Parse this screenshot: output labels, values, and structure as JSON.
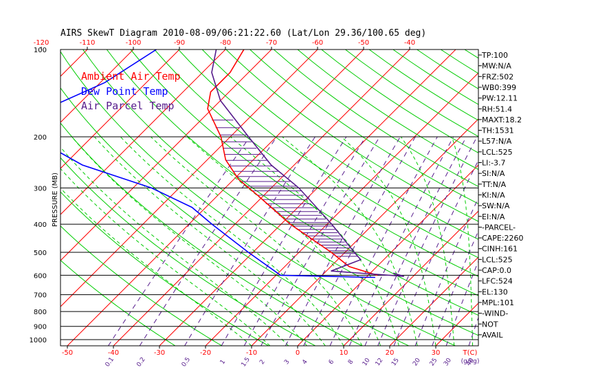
{
  "chart_data": {
    "type": "skewt",
    "title": "AIRS SkewT Diagram 2010-08-09/06:21:22.60 (Lat/Lon 29.36/100.65 deg)",
    "ylabel": "PRESSURE (MB)",
    "pressure_ticks": [
      100,
      200,
      300,
      400,
      500,
      600,
      700,
      800,
      900,
      1000
    ],
    "top_temp_ticks": [
      -120,
      -110,
      -100,
      -90,
      -80,
      -70,
      -60,
      -50,
      -40
    ],
    "bottom_temp_ticks": [
      -50,
      -40,
      -30,
      -20,
      -10,
      0,
      10,
      20,
      30
    ],
    "bottom_temp_unit": "T(C)",
    "mixing_ratio_labels": [
      "0.1",
      "0.2",
      "0.5",
      "1",
      "1.5",
      "2",
      "3",
      "4",
      "6",
      "8",
      "10",
      "12",
      "15",
      "20",
      "25",
      "30",
      "40"
    ],
    "mixing_ratio_unit": "(g/kg)",
    "legend": [
      {
        "label": "Ambient Air Temp",
        "color": "#ff0000"
      },
      {
        "label": "Dew Point Temp",
        "color": "#0000ff"
      },
      {
        "label": "Air Parcel Temp",
        "color": "#551a8b"
      }
    ],
    "series": [
      {
        "name": "Ambient Air Temp",
        "color": "#ff0000",
        "points": [
          [
            100,
            -76
          ],
          [
            120,
            -74
          ],
          [
            140,
            -74
          ],
          [
            160,
            -71
          ],
          [
            200,
            -62
          ],
          [
            240,
            -56
          ],
          [
            280,
            -49
          ],
          [
            320,
            -41
          ],
          [
            400,
            -28
          ],
          [
            500,
            -13
          ],
          [
            560,
            -6
          ],
          [
            600,
            2
          ]
        ]
      },
      {
        "name": "Dew Point Temp",
        "color": "#0000ff",
        "points": [
          [
            100,
            -95
          ],
          [
            130,
            -99
          ],
          [
            160,
            -106
          ],
          [
            200,
            -103
          ],
          [
            250,
            -86
          ],
          [
            300,
            -66
          ],
          [
            350,
            -53
          ],
          [
            400,
            -45
          ],
          [
            500,
            -31
          ],
          [
            600,
            -19
          ],
          [
            610,
            2
          ]
        ]
      },
      {
        "name": "Air Parcel Temp",
        "color": "#551a8b",
        "points": [
          [
            100,
            -82
          ],
          [
            120,
            -78
          ],
          [
            150,
            -70
          ],
          [
            200,
            -56
          ],
          [
            250,
            -45
          ],
          [
            300,
            -34
          ],
          [
            400,
            -19
          ],
          [
            500,
            -8
          ],
          [
            530,
            -5
          ],
          [
            580,
            -9
          ],
          [
            605,
            8
          ],
          [
            590,
            5
          ]
        ]
      }
    ],
    "indices": [
      "TP:100",
      "MW:N/A",
      "FRZ:502",
      "WB0:399",
      "PW:12.11",
      "RH:51.4",
      "MAXT:18.2",
      "TH:1531",
      "L57:N/A",
      "LCL:525",
      "LI:-3.7",
      "SI:N/A",
      "TT:N/A",
      "KI:N/A",
      "SW:N/A",
      "EI:N/A",
      "-PARCEL-",
      "CAPE:2260",
      "CINH:161",
      "LCL:525",
      "CAP:0.0",
      "LFC:524",
      "EL:130",
      "MPL:101",
      "-WIND-",
      "NOT",
      "AVAIL"
    ]
  },
  "colors": {
    "isotherm": "#ff0000",
    "dry_adiabat": "#00cc00",
    "moist_adiabat": "#00cc00",
    "mixing_ratio": "#551a8b",
    "isobar": "#000000",
    "temp_labels": "#ff0000"
  }
}
